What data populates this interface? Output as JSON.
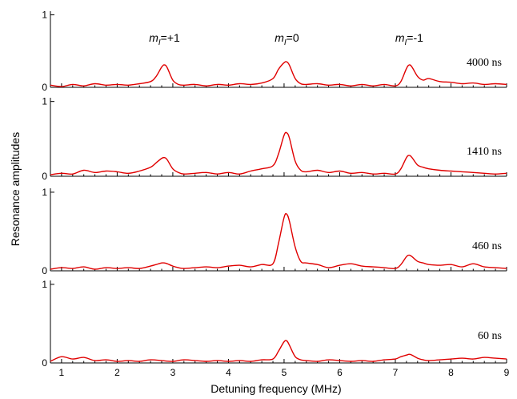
{
  "chart_data": {
    "type": "line",
    "xlabel": "Detuning frequency (MHz)",
    "ylabel": "Resonance amplitudes",
    "xlim": [
      0.8,
      9.0
    ],
    "x_ticks": [
      1,
      2,
      3,
      4,
      5,
      6,
      7,
      8,
      9
    ],
    "ylim": [
      0,
      1.05
    ],
    "y_ticks": [
      0,
      1
    ],
    "line_color": "#e00000",
    "peak_labels": [
      {
        "m": "m",
        "sub": "I",
        "val": "=+1",
        "x": 2.85
      },
      {
        "m": "m",
        "sub": "I",
        "val": "=0",
        "x": 5.05
      },
      {
        "m": "m",
        "sub": "I",
        "val": "=-1",
        "x": 7.25
      }
    ],
    "panels": [
      {
        "label": "4000 ns",
        "x": [
          0.8,
          1.0,
          1.2,
          1.4,
          1.6,
          1.8,
          2.0,
          2.2,
          2.4,
          2.6,
          2.7,
          2.8,
          2.85,
          2.9,
          3.0,
          3.1,
          3.2,
          3.4,
          3.6,
          3.8,
          4.0,
          4.2,
          4.4,
          4.6,
          4.8,
          4.9,
          5.0,
          5.05,
          5.1,
          5.2,
          5.3,
          5.4,
          5.6,
          5.8,
          6.0,
          6.2,
          6.4,
          6.6,
          6.8,
          7.0,
          7.1,
          7.2,
          7.25,
          7.3,
          7.4,
          7.5,
          7.6,
          7.8,
          8.0,
          8.2,
          8.4,
          8.6,
          8.8,
          9.0
        ],
        "y": [
          0.03,
          0.01,
          0.04,
          0.02,
          0.05,
          0.03,
          0.04,
          0.03,
          0.05,
          0.08,
          0.15,
          0.28,
          0.31,
          0.27,
          0.1,
          0.04,
          0.03,
          0.04,
          0.02,
          0.04,
          0.03,
          0.05,
          0.04,
          0.06,
          0.12,
          0.25,
          0.34,
          0.35,
          0.3,
          0.12,
          0.05,
          0.04,
          0.05,
          0.03,
          0.04,
          0.02,
          0.04,
          0.02,
          0.04,
          0.02,
          0.08,
          0.26,
          0.31,
          0.28,
          0.15,
          0.1,
          0.12,
          0.08,
          0.07,
          0.05,
          0.06,
          0.04,
          0.05,
          0.04
        ]
      },
      {
        "label": "1410 ns",
        "x": [
          0.8,
          1.0,
          1.2,
          1.4,
          1.6,
          1.8,
          2.0,
          2.2,
          2.4,
          2.6,
          2.7,
          2.8,
          2.85,
          2.9,
          3.0,
          3.1,
          3.2,
          3.4,
          3.6,
          3.8,
          4.0,
          4.2,
          4.4,
          4.6,
          4.8,
          4.9,
          5.0,
          5.05,
          5.1,
          5.2,
          5.3,
          5.4,
          5.6,
          5.8,
          6.0,
          6.2,
          6.4,
          6.6,
          6.8,
          7.0,
          7.1,
          7.2,
          7.25,
          7.3,
          7.4,
          7.5,
          7.6,
          7.8,
          8.0,
          8.2,
          8.4,
          8.6,
          8.8,
          9.0
        ],
        "y": [
          0.02,
          0.04,
          0.03,
          0.08,
          0.05,
          0.07,
          0.06,
          0.04,
          0.07,
          0.12,
          0.18,
          0.24,
          0.25,
          0.22,
          0.1,
          0.05,
          0.03,
          0.04,
          0.05,
          0.03,
          0.05,
          0.03,
          0.07,
          0.1,
          0.14,
          0.3,
          0.55,
          0.58,
          0.5,
          0.2,
          0.08,
          0.06,
          0.08,
          0.05,
          0.07,
          0.04,
          0.05,
          0.03,
          0.04,
          0.03,
          0.1,
          0.25,
          0.28,
          0.25,
          0.15,
          0.12,
          0.1,
          0.08,
          0.07,
          0.06,
          0.05,
          0.04,
          0.03,
          0.04
        ]
      },
      {
        "label": "460 ns",
        "x": [
          0.8,
          1.0,
          1.2,
          1.4,
          1.6,
          1.8,
          2.0,
          2.2,
          2.4,
          2.6,
          2.7,
          2.8,
          2.85,
          2.9,
          3.0,
          3.1,
          3.2,
          3.4,
          3.6,
          3.8,
          4.0,
          4.2,
          4.4,
          4.6,
          4.8,
          4.9,
          5.0,
          5.05,
          5.1,
          5.2,
          5.3,
          5.4,
          5.6,
          5.8,
          6.0,
          6.2,
          6.4,
          6.6,
          6.8,
          7.0,
          7.1,
          7.2,
          7.25,
          7.3,
          7.4,
          7.5,
          7.6,
          7.8,
          8.0,
          8.2,
          8.4,
          8.6,
          8.8,
          9.0
        ],
        "y": [
          0.02,
          0.04,
          0.03,
          0.05,
          0.02,
          0.04,
          0.03,
          0.04,
          0.03,
          0.06,
          0.08,
          0.1,
          0.1,
          0.09,
          0.06,
          0.04,
          0.03,
          0.04,
          0.05,
          0.04,
          0.06,
          0.07,
          0.05,
          0.08,
          0.09,
          0.35,
          0.68,
          0.72,
          0.62,
          0.3,
          0.12,
          0.1,
          0.08,
          0.04,
          0.07,
          0.09,
          0.06,
          0.05,
          0.04,
          0.03,
          0.08,
          0.18,
          0.2,
          0.18,
          0.12,
          0.1,
          0.08,
          0.07,
          0.08,
          0.05,
          0.09,
          0.05,
          0.04,
          0.03
        ]
      },
      {
        "label": "60 ns",
        "x": [
          0.8,
          1.0,
          1.2,
          1.4,
          1.6,
          1.8,
          2.0,
          2.2,
          2.4,
          2.6,
          2.8,
          3.0,
          3.2,
          3.4,
          3.6,
          3.8,
          4.0,
          4.2,
          4.4,
          4.6,
          4.8,
          4.9,
          5.0,
          5.05,
          5.1,
          5.2,
          5.3,
          5.4,
          5.6,
          5.8,
          6.0,
          6.2,
          6.4,
          6.6,
          6.8,
          7.0,
          7.1,
          7.2,
          7.25,
          7.3,
          7.4,
          7.5,
          7.6,
          7.8,
          8.0,
          8.2,
          8.4,
          8.6,
          8.8,
          9.0
        ],
        "y": [
          0.02,
          0.08,
          0.05,
          0.07,
          0.03,
          0.04,
          0.02,
          0.03,
          0.02,
          0.04,
          0.03,
          0.02,
          0.04,
          0.03,
          0.02,
          0.03,
          0.02,
          0.03,
          0.02,
          0.04,
          0.05,
          0.15,
          0.27,
          0.28,
          0.22,
          0.08,
          0.04,
          0.03,
          0.02,
          0.04,
          0.03,
          0.02,
          0.03,
          0.02,
          0.04,
          0.05,
          0.08,
          0.1,
          0.11,
          0.1,
          0.06,
          0.04,
          0.03,
          0.04,
          0.05,
          0.06,
          0.05,
          0.07,
          0.06,
          0.05
        ]
      }
    ]
  }
}
